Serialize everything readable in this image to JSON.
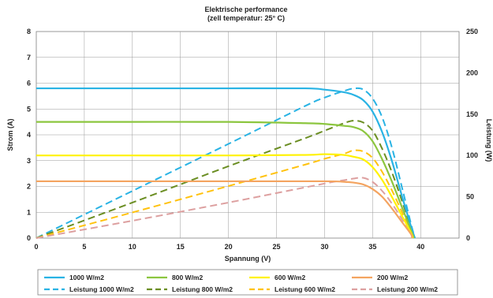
{
  "chart_data": {
    "type": "line",
    "title": "Elektrische performance",
    "subtitle": "(zell temperatur: 25° C)",
    "xlabel": "Spannung (V)",
    "ylabel": "Strom (A)",
    "y2label": "Leistung (W)",
    "xlim": [
      0,
      44
    ],
    "xticks": [
      "0",
      "5",
      "10",
      "15",
      "20",
      "25",
      "30",
      "35",
      "40"
    ],
    "ylim": [
      0,
      8
    ],
    "yticks": [
      "0",
      "1",
      "2",
      "3",
      "4",
      "5",
      "6",
      "7",
      "8"
    ],
    "y2lim": [
      0,
      250
    ],
    "y2ticks": [
      "0",
      "50",
      "100",
      "150",
      "200",
      "250"
    ],
    "grid": true,
    "legend_position": "bottom",
    "series": [
      {
        "name": "1000 W/m2",
        "axis": "left",
        "style": "solid",
        "color": "#29b3e4",
        "x": [
          0,
          10,
          20,
          28,
          30,
          32,
          33,
          34,
          35,
          36,
          37,
          38,
          39,
          39.4
        ],
        "y": [
          5.8,
          5.8,
          5.8,
          5.8,
          5.75,
          5.65,
          5.55,
          5.35,
          4.9,
          4.1,
          3.0,
          1.7,
          0.45,
          0
        ]
      },
      {
        "name": "800 W/m2",
        "axis": "left",
        "style": "solid",
        "color": "#8cc63f",
        "x": [
          0,
          10,
          20,
          28,
          30,
          32,
          33,
          34,
          35,
          36,
          37,
          38,
          39,
          39.3
        ],
        "y": [
          4.5,
          4.5,
          4.5,
          4.45,
          4.42,
          4.35,
          4.3,
          4.15,
          3.75,
          3.05,
          2.2,
          1.25,
          0.3,
          0
        ]
      },
      {
        "name": "600 W/m2",
        "axis": "left",
        "style": "solid",
        "color": "#fff200",
        "x": [
          0,
          10,
          20,
          28,
          30,
          32,
          33,
          34,
          35,
          36,
          37,
          38,
          39,
          39.2
        ],
        "y": [
          3.2,
          3.2,
          3.2,
          3.22,
          3.25,
          3.22,
          3.15,
          3.05,
          2.75,
          2.25,
          1.6,
          0.9,
          0.2,
          0
        ]
      },
      {
        "name": "200 W/m2",
        "axis": "left",
        "style": "solid",
        "color": "#f4a460",
        "x": [
          0,
          10,
          20,
          30,
          32,
          33,
          34,
          35,
          36,
          37,
          38,
          39,
          39.1
        ],
        "y": [
          2.2,
          2.2,
          2.2,
          2.2,
          2.18,
          2.15,
          2.08,
          1.9,
          1.6,
          1.15,
          0.65,
          0.15,
          0
        ]
      },
      {
        "name": "Leistung 1000 W/m2",
        "axis": "right",
        "style": "dashed",
        "color": "#29b3e4",
        "x": [
          0,
          10,
          20,
          28,
          30,
          32,
          33,
          34,
          35,
          36,
          37,
          38,
          39,
          39.4
        ],
        "y": [
          0,
          57,
          114,
          160,
          170,
          178,
          181,
          180,
          169,
          146,
          110,
          64,
          17,
          0
        ]
      },
      {
        "name": "Leistung 800 W/m2",
        "axis": "right",
        "style": "dashed",
        "color": "#6b8e23",
        "x": [
          0,
          10,
          20,
          28,
          30,
          32,
          33,
          34,
          35,
          36,
          37,
          38,
          39,
          39.3
        ],
        "y": [
          0,
          43,
          87,
          121,
          130,
          139,
          142,
          140,
          130,
          108,
          80,
          47,
          12,
          0
        ]
      },
      {
        "name": "Leistung 600 W/m2",
        "axis": "right",
        "style": "dashed",
        "color": "#ffc20e",
        "x": [
          0,
          10,
          20,
          28,
          30,
          32,
          33,
          34,
          35,
          36,
          37,
          38,
          39,
          39.2
        ],
        "y": [
          0,
          31,
          63,
          89,
          96,
          102,
          106,
          105,
          97,
          80,
          58,
          33,
          7,
          0
        ]
      },
      {
        "name": "Leistung 200 W/m2",
        "axis": "right",
        "style": "dashed",
        "color": "#dda0a0",
        "x": [
          0,
          10,
          20,
          30,
          32,
          33,
          34,
          35,
          36,
          37,
          38,
          39,
          39.1
        ],
        "y": [
          0,
          21,
          43,
          66,
          70,
          72,
          73,
          68,
          57,
          42,
          24,
          6,
          0
        ]
      }
    ]
  }
}
